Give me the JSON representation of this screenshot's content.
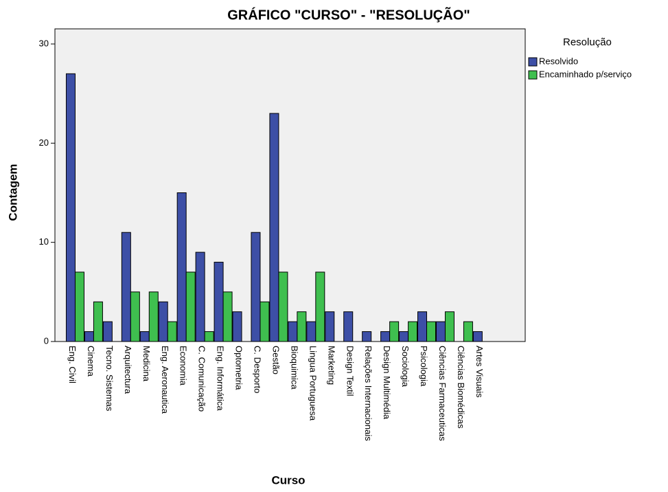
{
  "chart_data": {
    "type": "bar",
    "title": "GRÁFICO \"CURSO\" - \"RESOLUÇÃO\"",
    "x_label": "Curso",
    "y_label": "Contagem",
    "legend_title": "Resolução",
    "legend": "right",
    "categories": [
      "Eng. Civil",
      "Cinema",
      "Tecno. Sistemas",
      "Arquitectura",
      "Medicina",
      "Eng. Aeronautica",
      "Economia",
      "C. Comunicação",
      "Eng. Informática",
      "Optometria",
      "C. Desporto",
      "Gestão",
      "Bioquimica",
      "Lingua Portuguesa",
      "Marketing",
      "Design Textil",
      "Relações Internacionais",
      "Design Multimédia",
      "Sociologia",
      "Psicologia",
      "Ciências Farmaceuticas",
      "Ciências Biomédicas",
      "Artes Visuais"
    ],
    "series": [
      {
        "name": "Resolvido",
        "color": "#3d4fa6",
        "values": [
          27,
          1,
          2,
          11,
          1,
          4,
          15,
          9,
          8,
          3,
          11,
          23,
          2,
          2,
          3,
          3,
          1,
          1,
          1,
          3,
          2,
          0,
          1
        ]
      },
      {
        "name": "Encaminhado p/serviço",
        "color": "#3fbf4f",
        "values": [
          7,
          4,
          0,
          5,
          5,
          2,
          7,
          1,
          5,
          0,
          4,
          7,
          3,
          7,
          0,
          0,
          0,
          2,
          2,
          2,
          3,
          2,
          0
        ]
      }
    ],
    "ylim": [
      0,
      30
    ],
    "yticks": [
      0,
      10,
      20,
      30
    ],
    "grid": false
  }
}
